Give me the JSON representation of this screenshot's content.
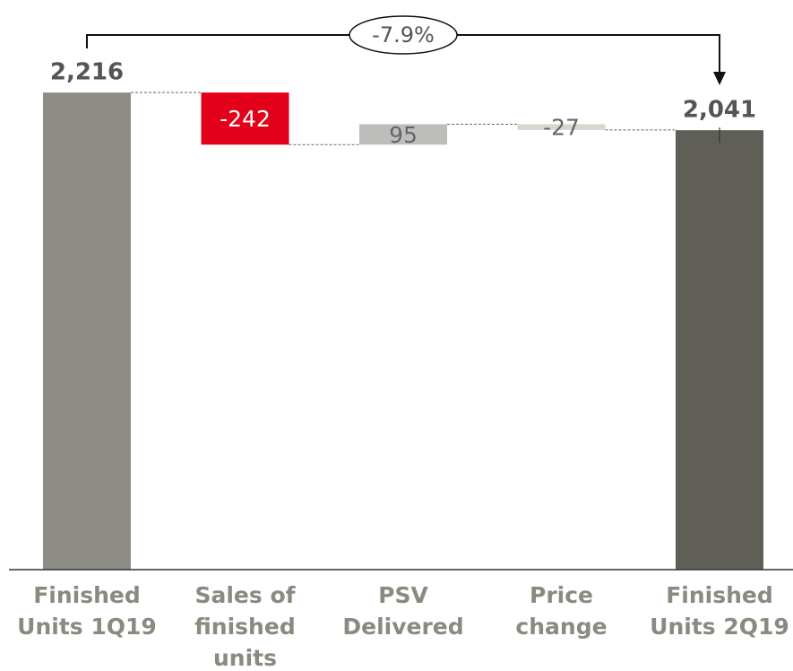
{
  "chart_data": {
    "type": "waterfall",
    "categories": [
      "Finished Units 1Q19",
      "Sales of finished units",
      "PSV Delivered",
      "Price change",
      "Finished Units 2Q19"
    ],
    "values": [
      2216,
      -242,
      95,
      -27,
      2041
    ],
    "value_labels": [
      "2,216",
      "-242",
      "95",
      "-27",
      "2,041"
    ],
    "colors": [
      "#8e8d85",
      "#e2001a",
      "#bdbdbb",
      "#d8d7cd",
      "#605f57"
    ],
    "totals": [
      true,
      false,
      false,
      false,
      true
    ],
    "ylim": [
      0,
      2400
    ],
    "annotation": "-7.9%"
  }
}
